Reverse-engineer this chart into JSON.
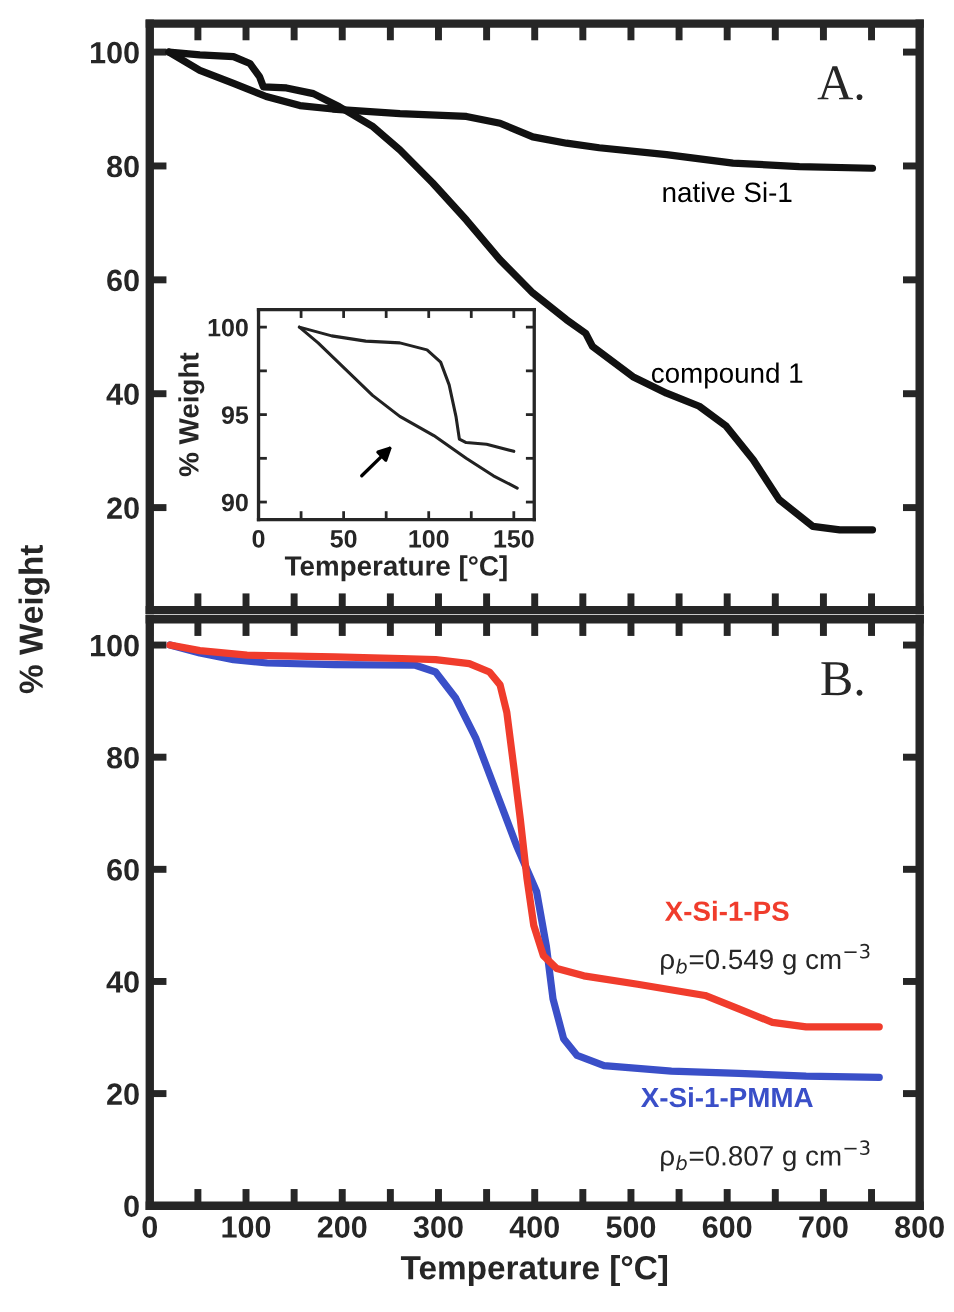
{
  "chart_data": [
    {
      "type": "line",
      "xlim": [
        0,
        800
      ],
      "ylim": [
        2,
        105
      ],
      "xticks": [
        0,
        {
          "value": 50,
          "label": null
        },
        100,
        {
          "value": 150,
          "label": null
        },
        200,
        {
          "value": 250,
          "label": null
        },
        300,
        {
          "value": 350,
          "label": null
        },
        400,
        {
          "value": 450,
          "label": null
        },
        500,
        {
          "value": 550,
          "label": null
        },
        600,
        {
          "value": 650,
          "label": null
        },
        700,
        {
          "value": 750,
          "label": null
        },
        800
      ],
      "yticks": [
        20,
        40,
        60,
        80,
        100
      ],
      "tick_labels": "y",
      "grid": false,
      "annotations": [
        "A."
      ],
      "series": [
        {
          "name": "native Si-1",
          "color": "#111111",
          "x": [
            20,
            52,
            87,
            121,
            156,
            190,
            260,
            329,
            364,
            398,
            433,
            467,
            537,
            606,
            675,
            751
          ],
          "values": [
            100,
            96.8,
            94.5,
            92.2,
            90.6,
            90,
            89.2,
            88.7,
            87.5,
            85.1,
            84,
            83.2,
            82,
            80.5,
            79.9,
            79.6
          ]
        },
        {
          "name": "compound 1",
          "color": "#111111",
          "x": [
            20,
            52,
            87,
            104,
            114,
            118,
            142,
            170,
            197,
            232,
            260,
            294,
            329,
            364,
            398,
            433,
            453,
            460,
            502,
            537,
            571,
            599,
            627,
            654,
            689,
            717,
            751
          ],
          "values": [
            100,
            99.5,
            99.2,
            98,
            95.7,
            93.9,
            93.7,
            92.7,
            90.4,
            86.9,
            82.8,
            77,
            70.5,
            63.5,
            57.7,
            53,
            50.6,
            48.3,
            43,
            40.1,
            37.8,
            34.3,
            28.4,
            21.4,
            16.7,
            16.1,
            16.1
          ]
        }
      ]
    },
    {
      "type": "line",
      "xlim": [
        0,
        162
      ],
      "ylim": [
        89,
        101
      ],
      "xlabel": "Temperature [°C]",
      "ylabel": "% Weight",
      "xticks": [
        0,
        {
          "value": 25,
          "label": null
        },
        50,
        {
          "value": 75,
          "label": null
        },
        100,
        {
          "value": 125,
          "label": null
        },
        150
      ],
      "yticks": [
        90,
        {
          "value": 92.5,
          "label": null
        },
        95,
        {
          "value": 97.5,
          "label": null
        },
        100
      ],
      "grid": false,
      "series": [
        {
          "color": "#222222",
          "x": [
            24,
            43,
            63,
            83,
            99,
            107,
            112,
            116,
            118,
            122,
            134,
            150
          ],
          "values": [
            100,
            99.5,
            99.2,
            99.1,
            98.7,
            98,
            96.7,
            94.9,
            93.6,
            93.4,
            93.3,
            92.9
          ]
        },
        {
          "color": "#222222",
          "x": [
            24,
            35,
            51,
            67,
            83,
            103,
            122,
            138,
            152
          ],
          "values": [
            100,
            99.1,
            97.6,
            96.1,
            94.9,
            93.8,
            92.5,
            91.5,
            90.8
          ]
        }
      ]
    },
    {
      "type": "line",
      "xlim": [
        0,
        800
      ],
      "ylim": [
        0,
        104.6
      ],
      "xlabel": "Temperature [°C]",
      "ylabel": "% Weight",
      "xticks": [
        0,
        {
          "value": 50,
          "label": null
        },
        100,
        {
          "value": 150,
          "label": null
        },
        200,
        {
          "value": 250,
          "label": null
        },
        300,
        {
          "value": 350,
          "label": null
        },
        400,
        {
          "value": 450,
          "label": null
        },
        500,
        {
          "value": 550,
          "label": null
        },
        600,
        {
          "value": 650,
          "label": null
        },
        700,
        {
          "value": 750,
          "label": null
        },
        800
      ],
      "yticks": [
        0,
        20,
        40,
        60,
        80,
        100
      ],
      "grid": false,
      "annotations": [
        "B.",
        "ρ$_{b}$=0.549 g cm$^{−3}$",
        "ρ$_{b}$=0.807 g cm$^{−3}$"
      ],
      "series": [
        {
          "name": "X-Si-1-PMMA",
          "color": "#3a4fc8",
          "x": [
            21,
            52,
            87,
            122,
            192,
            276,
            297,
            318,
            339,
            360,
            381,
            402,
            412,
            419,
            430,
            444,
            472,
            542,
            612,
            682,
            758
          ],
          "values": [
            100,
            98.6,
            97.4,
            96.8,
            96.5,
            96.4,
            95.2,
            90.5,
            83.3,
            73.8,
            64.3,
            56,
            46.4,
            36.9,
            29.8,
            26.8,
            25,
            24,
            23.6,
            23.1,
            22.9
          ]
        },
        {
          "name": "X-Si-1-PS",
          "color": "#f03c2c",
          "x": [
            21,
            52,
            101,
            192,
            262,
            297,
            332,
            353,
            364,
            371,
            378,
            385,
            392,
            399,
            409,
            423,
            451,
            507,
            577,
            612,
            647,
            682,
            758
          ],
          "values": [
            100,
            99,
            98.2,
            97.9,
            97.6,
            97.4,
            96.7,
            95.2,
            92.9,
            88,
            78.6,
            69,
            58.3,
            50,
            44.6,
            42.3,
            41,
            39.5,
            37.5,
            35.1,
            32.7,
            31.9,
            31.9
          ]
        }
      ]
    }
  ]
}
